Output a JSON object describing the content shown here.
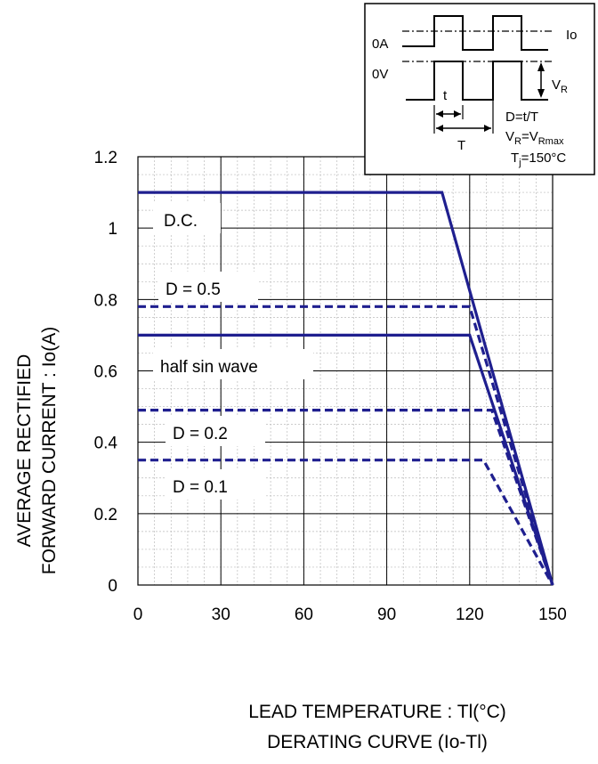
{
  "chart_data": {
    "type": "line",
    "title": "",
    "xlabel": "LEAD TEMPERATURE : Tl(°C)",
    "ylabel_line1": "AVERAGE RECTIFIED",
    "ylabel_line2": "FORWARD CURRENT : Io(A)",
    "caption": "DERATING CURVE (Io-Tl)",
    "xlim": [
      0,
      150
    ],
    "ylim": [
      0,
      1.2
    ],
    "x_ticks": [
      "0",
      "30",
      "60",
      "90",
      "120",
      "150"
    ],
    "y_ticks": [
      "0",
      "0.2",
      "0.4",
      "0.6",
      "0.8",
      "1",
      "1.2"
    ],
    "grid": true,
    "line_color": "#1f1f8f",
    "series": [
      {
        "name": "D.C.",
        "style": "solid",
        "points": [
          [
            0,
            1.1
          ],
          [
            110,
            1.1
          ],
          [
            150,
            0
          ]
        ]
      },
      {
        "name": "D = 0.5",
        "style": "dashed",
        "points": [
          [
            0,
            0.78
          ],
          [
            120,
            0.78
          ],
          [
            150,
            0
          ]
        ]
      },
      {
        "name": "half sin wave",
        "style": "solid",
        "points": [
          [
            0,
            0.7
          ],
          [
            120,
            0.7
          ],
          [
            150,
            0
          ]
        ]
      },
      {
        "name": "D = 0.2",
        "style": "dashed",
        "points": [
          [
            0,
            0.49
          ],
          [
            128,
            0.49
          ],
          [
            150,
            0
          ]
        ]
      },
      {
        "name": "D = 0.1",
        "style": "dashed",
        "points": [
          [
            0,
            0.35
          ],
          [
            125,
            0.35
          ],
          [
            150,
            0
          ]
        ]
      }
    ],
    "inset": {
      "label_io": "Io",
      "label_0a": "0A",
      "label_0v": "0V",
      "label_t_small": "t",
      "label_t_big": "T",
      "label_vr": "V",
      "label_vr_sub": "R",
      "eq_duty": "D=t/T",
      "eq_vr_main": "V",
      "eq_vr_sub": "R",
      "eq_vr_mid": "=V",
      "eq_vr_sub2": "Rmax",
      "eq_tj_main": "T",
      "eq_tj_sub": "j",
      "eq_tj_rest": "=150°C"
    }
  }
}
